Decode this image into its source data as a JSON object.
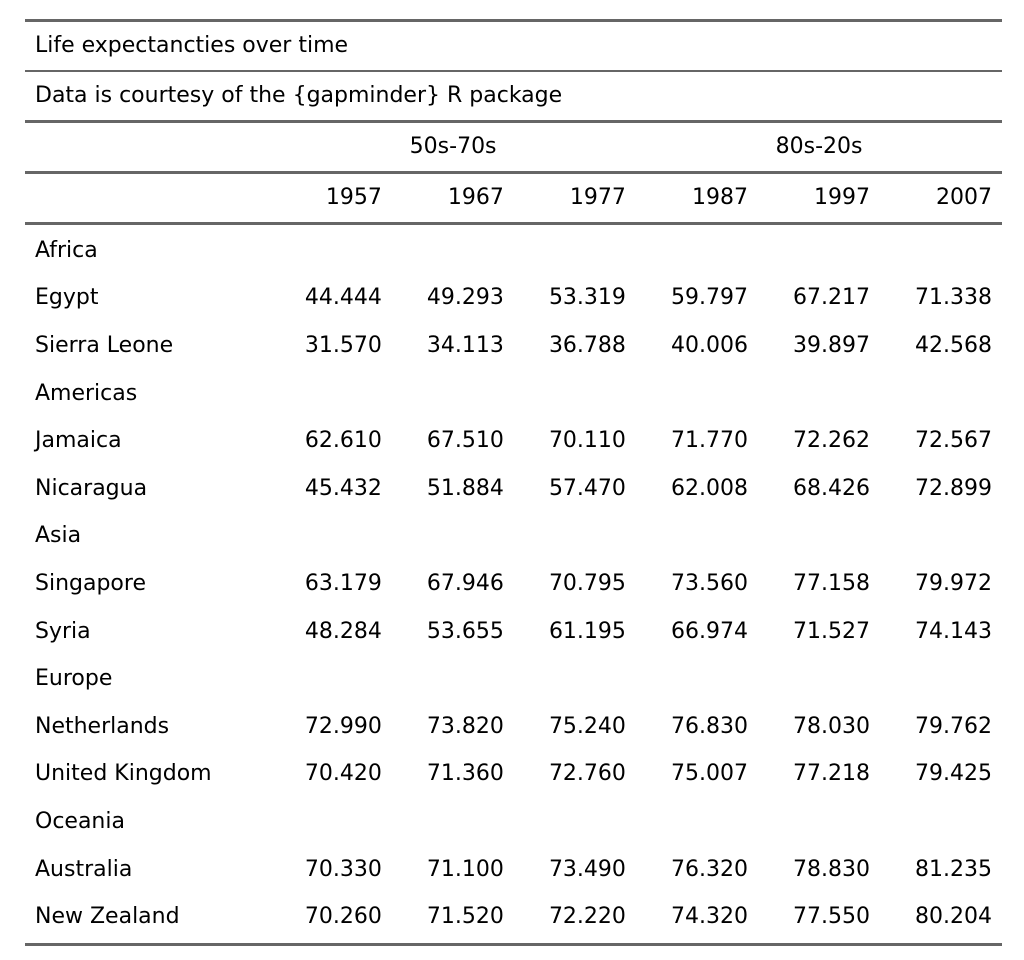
{
  "table": {
    "title": "Life expectancties over time",
    "subtitle": "Data is courtesy of the {gapminder} R package",
    "spanners": [
      "50s-70s",
      "80s-20s"
    ],
    "columns": [
      "1957",
      "1967",
      "1977",
      "1987",
      "1997",
      "2007"
    ],
    "groups": [
      {
        "label": "Africa",
        "rows": [
          {
            "country": "Egypt",
            "values": [
              "44.444",
              "49.293",
              "53.319",
              "59.797",
              "67.217",
              "71.338"
            ]
          },
          {
            "country": "Sierra Leone",
            "values": [
              "31.570",
              "34.113",
              "36.788",
              "40.006",
              "39.897",
              "42.568"
            ]
          }
        ]
      },
      {
        "label": "Americas",
        "rows": [
          {
            "country": "Jamaica",
            "values": [
              "62.610",
              "67.510",
              "70.110",
              "71.770",
              "72.262",
              "72.567"
            ]
          },
          {
            "country": "Nicaragua",
            "values": [
              "45.432",
              "51.884",
              "57.470",
              "62.008",
              "68.426",
              "72.899"
            ]
          }
        ]
      },
      {
        "label": "Asia",
        "rows": [
          {
            "country": "Singapore",
            "values": [
              "63.179",
              "67.946",
              "70.795",
              "73.560",
              "77.158",
              "79.972"
            ]
          },
          {
            "country": "Syria",
            "values": [
              "48.284",
              "53.655",
              "61.195",
              "66.974",
              "71.527",
              "74.143"
            ]
          }
        ]
      },
      {
        "label": "Europe",
        "rows": [
          {
            "country": "Netherlands",
            "values": [
              "72.990",
              "73.820",
              "75.240",
              "76.830",
              "78.030",
              "79.762"
            ]
          },
          {
            "country": "United Kingdom",
            "values": [
              "70.420",
              "71.360",
              "72.760",
              "75.007",
              "77.218",
              "79.425"
            ]
          }
        ]
      },
      {
        "label": "Oceania",
        "rows": [
          {
            "country": "Australia",
            "values": [
              "70.330",
              "71.100",
              "73.490",
              "76.320",
              "78.830",
              "81.235"
            ]
          },
          {
            "country": "New Zealand",
            "values": [
              "70.260",
              "71.520",
              "72.220",
              "74.320",
              "77.550",
              "80.204"
            ]
          }
        ]
      }
    ]
  }
}
